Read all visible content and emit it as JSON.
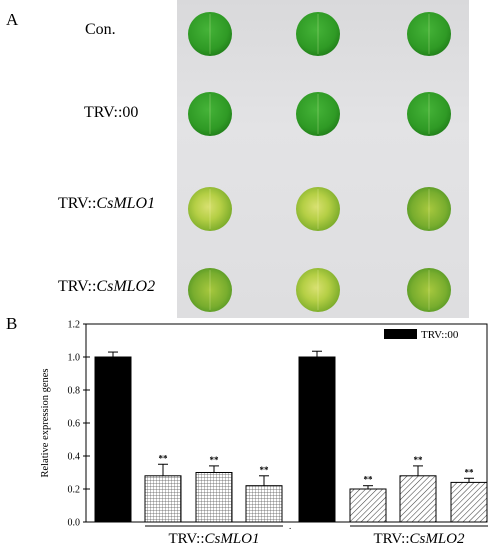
{
  "figure": {
    "panel_a_label": "A",
    "panel_b_label": "B",
    "rows": [
      {
        "prefix": "Con.",
        "gene": ""
      },
      {
        "prefix": "TRV::00",
        "gene": ""
      },
      {
        "prefix": "TRV::",
        "gene": "CsMLO1"
      },
      {
        "prefix": "TRV::",
        "gene": "CsMLO2"
      }
    ]
  },
  "colors": {
    "healthy_leaf": "#2f9a25",
    "silenced_leaf": "#b5cf45",
    "control_bar": "#000000"
  },
  "chart_data": {
    "type": "bar",
    "ylabel": "Relative expression genes",
    "ylim": [
      0,
      1.2
    ],
    "yticks": [
      "0.0",
      "0.2",
      "0.4",
      "0.6",
      "0.8",
      "1.0",
      "1.2"
    ],
    "legend": {
      "label": "TRV::00",
      "placement": "top-right"
    },
    "groups": [
      {
        "prefix": "TRV::",
        "gene": "CsMLO1",
        "bars": [
          {
            "value": 1.0,
            "error": 0.03,
            "pattern": "solid",
            "sig": ""
          },
          {
            "value": 0.28,
            "error": 0.07,
            "pattern": "grid",
            "sig": "**"
          },
          {
            "value": 0.3,
            "error": 0.04,
            "pattern": "grid",
            "sig": "**"
          },
          {
            "value": 0.22,
            "error": 0.06,
            "pattern": "grid",
            "sig": "**"
          }
        ]
      },
      {
        "prefix": "TRV::",
        "gene": "CsMLO2",
        "bars": [
          {
            "value": 1.0,
            "error": 0.035,
            "pattern": "solid",
            "sig": ""
          },
          {
            "value": 0.2,
            "error": 0.02,
            "pattern": "diagonal",
            "sig": "**"
          },
          {
            "value": 0.28,
            "error": 0.06,
            "pattern": "diagonal",
            "sig": "**"
          },
          {
            "value": 0.24,
            "error": 0.025,
            "pattern": "diagonal",
            "sig": "**"
          }
        ]
      }
    ]
  }
}
